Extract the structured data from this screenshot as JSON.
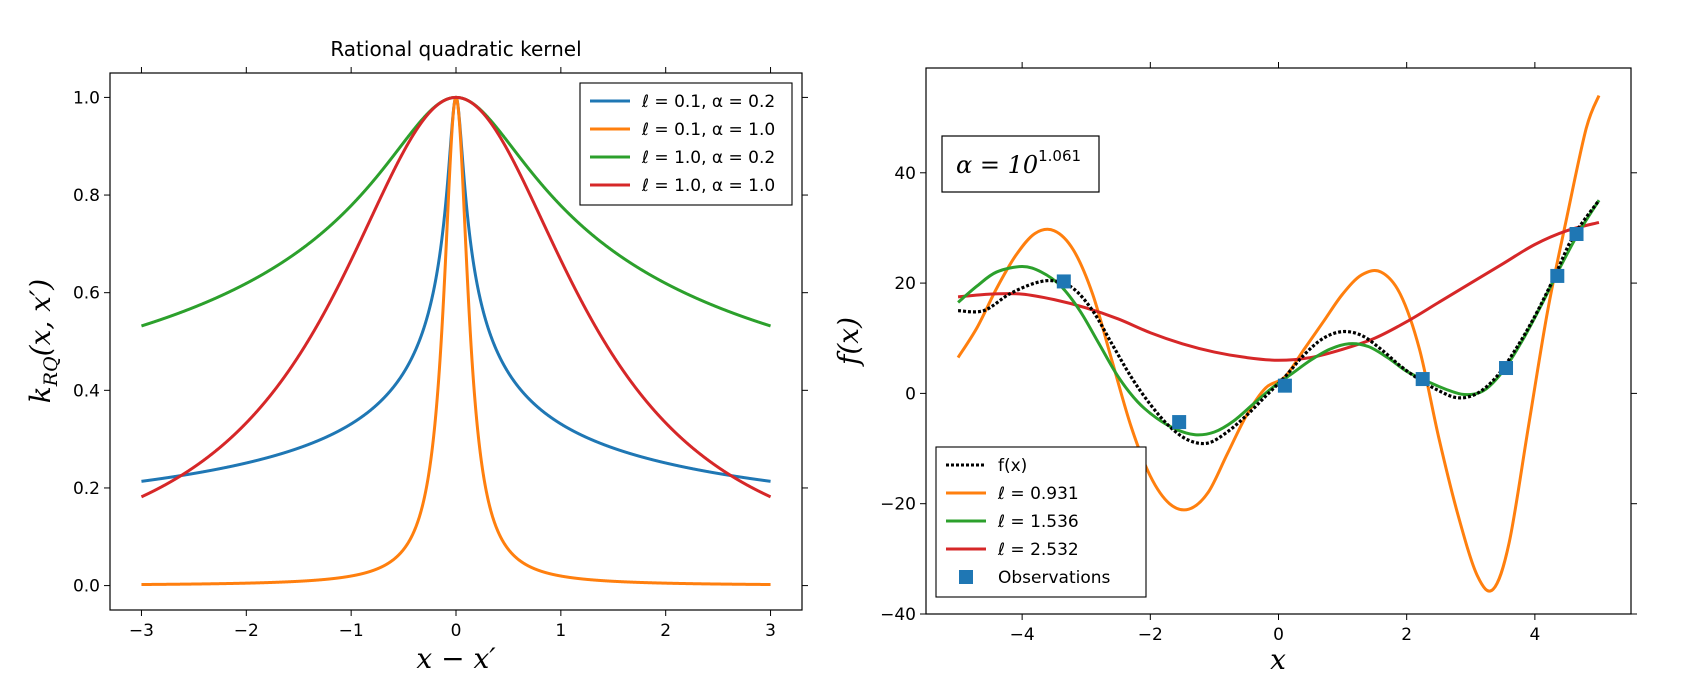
{
  "chart_data": [
    {
      "type": "line",
      "title": "Rational quadratic kernel",
      "xlabel": "x − x′",
      "ylabel": "kRQ(x, x′)",
      "xlim": [
        -3.3,
        3.3
      ],
      "ylim": [
        -0.05,
        1.05
      ],
      "xticks": [
        -3,
        -2,
        -1,
        0,
        1,
        2,
        3
      ],
      "xtick_labels": [
        "−3",
        "−2",
        "−1",
        "0",
        "1",
        "2",
        "3"
      ],
      "yticks": [
        0.0,
        0.2,
        0.4,
        0.6,
        0.8,
        1.0
      ],
      "ytick_labels": [
        "0.0",
        "0.2",
        "0.4",
        "0.6",
        "0.8",
        "1.0"
      ],
      "legend_position": "top-right",
      "grid": false,
      "series": [
        {
          "name": "ℓ = 0.1, α = 0.2",
          "color": "#1f77b4",
          "length_scale": 0.1,
          "alpha": 0.2
        },
        {
          "name": "ℓ = 0.1, α = 1.0",
          "color": "#ff7f0e",
          "length_scale": 0.1,
          "alpha": 1.0
        },
        {
          "name": "ℓ = 1.0, α = 0.2",
          "color": "#2ca02c",
          "length_scale": 1.0,
          "alpha": 0.2
        },
        {
          "name": "ℓ = 1.0, α = 1.0",
          "color": "#d62728",
          "length_scale": 1.0,
          "alpha": 1.0
        }
      ]
    },
    {
      "type": "line",
      "title": "",
      "xlabel": "x",
      "ylabel": "f(x)",
      "xlim": [
        -5.5,
        5.5
      ],
      "ylim": [
        -40,
        59
      ],
      "xticks": [
        -4,
        -2,
        0,
        2,
        4
      ],
      "xtick_labels": [
        "−4",
        "−2",
        "0",
        "2",
        "4"
      ],
      "yticks": [
        -40,
        -20,
        0,
        20,
        40
      ],
      "ytick_labels": [
        "−40",
        "−20",
        "0",
        "20",
        "40"
      ],
      "legend_position": "lower-left",
      "grid": false,
      "annotation": {
        "text": "α = 10",
        "exponent": "1.061"
      },
      "series": [
        {
          "name": "f(x)",
          "color": "#000000",
          "style": "dotted",
          "x": [
            -5.0,
            -4.6,
            -4.2,
            -3.8,
            -3.5,
            -3.2,
            -2.9,
            -2.6,
            -2.3,
            -2.0,
            -1.7,
            -1.4,
            -1.1,
            -0.8,
            -0.5,
            -0.2,
            0.1,
            0.4,
            0.7,
            1.0,
            1.3,
            1.6,
            1.9,
            2.2,
            2.5,
            2.8,
            3.1,
            3.4,
            3.7,
            4.0,
            4.3,
            4.6,
            5.0
          ],
          "y": [
            15,
            15,
            18,
            20,
            20.4,
            19,
            15,
            9,
            3,
            -2,
            -6,
            -8.5,
            -9,
            -7,
            -4,
            -0.5,
            3,
            7,
            10,
            11.2,
            10.5,
            8,
            5,
            2.5,
            0.5,
            -0.8,
            0,
            3,
            8,
            14,
            21,
            28.5,
            35
          ]
        },
        {
          "name": "ℓ = 0.931",
          "color": "#ff7f0e",
          "style": "solid",
          "x": [
            -5.0,
            -4.7,
            -4.4,
            -4.1,
            -3.8,
            -3.5,
            -3.2,
            -2.9,
            -2.6,
            -2.3,
            -2.0,
            -1.7,
            -1.4,
            -1.1,
            -0.8,
            -0.5,
            -0.2,
            0.1,
            0.4,
            0.7,
            1.0,
            1.3,
            1.6,
            1.9,
            2.2,
            2.5,
            2.8,
            3.1,
            3.35,
            3.6,
            3.9,
            4.2,
            4.5,
            4.8,
            5.0
          ],
          "y": [
            6.5,
            12,
            19,
            25,
            29,
            29.5,
            26,
            18,
            6,
            -6,
            -15,
            -20,
            -21,
            -18,
            -11,
            -4,
            1,
            3,
            8,
            13,
            18,
            21.5,
            22,
            18,
            8,
            -8,
            -22,
            -33,
            -35.5,
            -27,
            -6,
            15,
            32,
            48,
            54
          ]
        },
        {
          "name": "ℓ = 1.536",
          "color": "#2ca02c",
          "style": "solid",
          "x": [
            -5.0,
            -4.7,
            -4.4,
            -4.0,
            -3.7,
            -3.4,
            -3.1,
            -2.8,
            -2.5,
            -2.2,
            -1.9,
            -1.6,
            -1.3,
            -1.0,
            -0.7,
            -0.4,
            -0.1,
            0.2,
            0.5,
            0.8,
            1.1,
            1.4,
            1.7,
            2.0,
            2.3,
            2.6,
            2.9,
            3.2,
            3.5,
            3.8,
            4.1,
            4.4,
            4.7,
            5.0
          ],
          "y": [
            16.5,
            19.5,
            22,
            23,
            22,
            19.5,
            15,
            9,
            3,
            -1.5,
            -4.5,
            -6.5,
            -7.5,
            -7,
            -5,
            -2,
            1,
            3.5,
            6,
            8,
            9,
            8.5,
            6.5,
            4,
            2.3,
            0.8,
            -0.2,
            0.5,
            4,
            9.5,
            16,
            23,
            29.5,
            35
          ]
        },
        {
          "name": "ℓ = 2.532",
          "color": "#d62728",
          "style": "solid",
          "x": [
            -5.0,
            -4.5,
            -4.0,
            -3.5,
            -3.0,
            -2.5,
            -2.0,
            -1.5,
            -1.0,
            -0.5,
            0.0,
            0.5,
            1.0,
            1.5,
            2.0,
            2.5,
            3.0,
            3.5,
            4.0,
            4.5,
            5.0
          ],
          "y": [
            17.5,
            18,
            18,
            17,
            15.5,
            13.5,
            11,
            9,
            7.5,
            6.5,
            6,
            6.5,
            8,
            10,
            13,
            16.5,
            20,
            23.5,
            27,
            29.5,
            31
          ]
        },
        {
          "name": "Observations",
          "color": "#1f77b4",
          "style": "markers",
          "x": [
            -3.35,
            -1.55,
            0.1,
            2.25,
            3.55,
            4.35,
            4.65
          ],
          "y": [
            20.3,
            -5.2,
            1.4,
            2.6,
            4.6,
            21.3,
            28.9
          ]
        }
      ]
    }
  ]
}
